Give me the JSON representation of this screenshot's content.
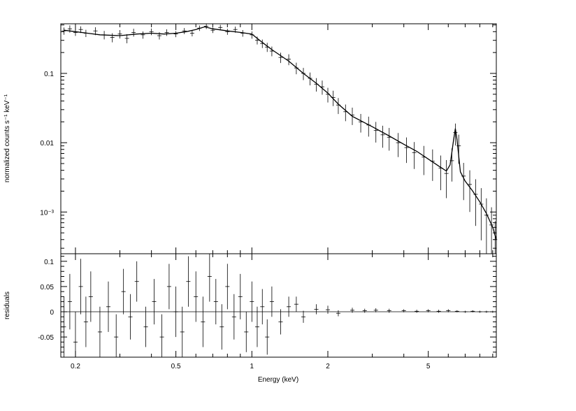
{
  "chart_data": {
    "type": "line",
    "top_panel": {
      "ylabel": "normalized counts s⁻¹ keV⁻¹",
      "yscale": "log",
      "xscale": "log",
      "xlim": [
        0.175,
        9.3
      ],
      "ylim": [
        0.00025,
        0.52
      ],
      "ytick_labels": [
        {
          "value": 0.1,
          "label": "0.1"
        },
        {
          "value": 0.01,
          "label": "0.01"
        },
        {
          "value": 0.001,
          "label": "10⁻³"
        }
      ],
      "model_curve": {
        "x": [
          0.18,
          0.2,
          0.25,
          0.3,
          0.35,
          0.4,
          0.45,
          0.5,
          0.55,
          0.6,
          0.65,
          0.7,
          0.8,
          0.9,
          1.0,
          1.1,
          1.2,
          1.4,
          1.6,
          1.8,
          2.0,
          2.2,
          2.5,
          3.0,
          3.5,
          4.0,
          4.5,
          5.0,
          5.5,
          5.9,
          6.1,
          6.3,
          6.4,
          6.5,
          6.7,
          7.0,
          7.5,
          8.0,
          8.5,
          9.0,
          9.3
        ],
        "y": [
          0.42,
          0.4,
          0.36,
          0.35,
          0.37,
          0.38,
          0.37,
          0.38,
          0.4,
          0.43,
          0.47,
          0.44,
          0.41,
          0.39,
          0.37,
          0.28,
          0.22,
          0.15,
          0.1,
          0.072,
          0.052,
          0.036,
          0.024,
          0.017,
          0.0125,
          0.0095,
          0.0075,
          0.0058,
          0.0046,
          0.0039,
          0.0048,
          0.011,
          0.016,
          0.011,
          0.0038,
          0.0028,
          0.002,
          0.0014,
          0.00095,
          0.0006,
          0.0004
        ]
      },
      "data_points": {
        "x": [
          0.18,
          0.19,
          0.2,
          0.21,
          0.22,
          0.24,
          0.26,
          0.28,
          0.3,
          0.32,
          0.34,
          0.37,
          0.4,
          0.43,
          0.46,
          0.5,
          0.54,
          0.58,
          0.62,
          0.66,
          0.7,
          0.75,
          0.8,
          0.86,
          0.92,
          1.0,
          1.05,
          1.1,
          1.15,
          1.2,
          1.3,
          1.4,
          1.5,
          1.6,
          1.7,
          1.8,
          1.9,
          2.0,
          2.1,
          2.2,
          2.35,
          2.5,
          2.7,
          2.9,
          3.1,
          3.3,
          3.5,
          3.8,
          4.1,
          4.4,
          4.8,
          5.2,
          5.6,
          5.9,
          6.2,
          6.4,
          6.6,
          6.9,
          7.3,
          7.7,
          8.1,
          8.5,
          8.9,
          9.2
        ],
        "y": [
          0.41,
          0.44,
          0.39,
          0.43,
          0.38,
          0.41,
          0.36,
          0.33,
          0.37,
          0.32,
          0.39,
          0.36,
          0.4,
          0.35,
          0.39,
          0.37,
          0.41,
          0.38,
          0.45,
          0.48,
          0.42,
          0.46,
          0.4,
          0.43,
          0.38,
          0.36,
          0.3,
          0.27,
          0.24,
          0.21,
          0.17,
          0.16,
          0.12,
          0.1,
          0.085,
          0.07,
          0.064,
          0.05,
          0.045,
          0.035,
          0.028,
          0.025,
          0.02,
          0.018,
          0.015,
          0.013,
          0.012,
          0.01,
          0.0085,
          0.0072,
          0.0062,
          0.0054,
          0.0043,
          0.0036,
          0.0055,
          0.014,
          0.009,
          0.0033,
          0.0025,
          0.0018,
          0.0013,
          0.0009,
          0.00065,
          0.0004
        ],
        "err_frac": [
          0.12,
          0.12,
          0.11,
          0.11,
          0.12,
          0.13,
          0.14,
          0.15,
          0.14,
          0.15,
          0.13,
          0.12,
          0.11,
          0.12,
          0.11,
          0.1,
          0.1,
          0.1,
          0.09,
          0.09,
          0.09,
          0.09,
          0.1,
          0.1,
          0.11,
          0.12,
          0.13,
          0.14,
          0.15,
          0.16,
          0.17,
          0.18,
          0.19,
          0.2,
          0.21,
          0.22,
          0.23,
          0.24,
          0.25,
          0.26,
          0.27,
          0.28,
          0.3,
          0.32,
          0.33,
          0.35,
          0.36,
          0.38,
          0.4,
          0.42,
          0.45,
          0.48,
          0.52,
          0.56,
          0.5,
          0.35,
          0.45,
          0.55,
          0.6,
          0.65,
          0.7,
          0.75,
          0.8,
          0.85
        ]
      }
    },
    "bottom_panel": {
      "ylabel": "residuals",
      "xlabel": "Energy (keV)",
      "xscale": "log",
      "ylim": [
        -0.09,
        0.115
      ],
      "ytick_labels": [
        {
          "value": 0.1,
          "label": "0.1"
        },
        {
          "value": 0.05,
          "label": "0.05"
        },
        {
          "value": 0,
          "label": "0"
        },
        {
          "value": -0.05,
          "label": "-0.05"
        }
      ],
      "zero_line": 0,
      "residuals": {
        "x": [
          0.18,
          0.19,
          0.2,
          0.21,
          0.22,
          0.23,
          0.25,
          0.27,
          0.29,
          0.31,
          0.33,
          0.35,
          0.38,
          0.41,
          0.44,
          0.47,
          0.5,
          0.53,
          0.56,
          0.6,
          0.64,
          0.68,
          0.72,
          0.76,
          0.8,
          0.85,
          0.9,
          0.95,
          1.0,
          1.05,
          1.1,
          1.15,
          1.2,
          1.3,
          1.4,
          1.5,
          1.6,
          1.8,
          2.0,
          2.2,
          2.5,
          2.8,
          3.1,
          3.5,
          4.0,
          4.5,
          5.0,
          5.5,
          6.0,
          6.5,
          7.0,
          7.5,
          8.0,
          8.5,
          9.0
        ],
        "y": [
          -0.03,
          0.02,
          -0.06,
          0.05,
          -0.02,
          0.03,
          -0.04,
          0.01,
          -0.05,
          0.04,
          -0.01,
          0.06,
          -0.03,
          0.02,
          -0.05,
          0.05,
          0.0,
          -0.04,
          0.06,
          0.03,
          -0.02,
          0.07,
          0.02,
          -0.03,
          0.05,
          -0.01,
          0.03,
          -0.04,
          0.02,
          -0.03,
          0.01,
          -0.05,
          0.02,
          -0.02,
          0.01,
          0.015,
          -0.01,
          0.005,
          0.004,
          -0.003,
          0.003,
          0.002,
          0.003,
          0.002,
          0.002,
          0.001,
          0.002,
          0.001,
          0.002,
          0.001,
          0.0,
          0.001,
          0.0,
          0.0,
          0.0
        ],
        "err": [
          0.06,
          0.055,
          0.06,
          0.055,
          0.05,
          0.05,
          0.05,
          0.05,
          0.045,
          0.045,
          0.045,
          0.04,
          0.04,
          0.045,
          0.045,
          0.045,
          0.05,
          0.05,
          0.05,
          0.05,
          0.05,
          0.05,
          0.045,
          0.045,
          0.045,
          0.045,
          0.045,
          0.04,
          0.04,
          0.04,
          0.035,
          0.035,
          0.03,
          0.025,
          0.02,
          0.015,
          0.012,
          0.01,
          0.008,
          0.006,
          0.005,
          0.004,
          0.004,
          0.004,
          0.003,
          0.003,
          0.003,
          0.003,
          0.003,
          0.002,
          0.002,
          0.002,
          0.002,
          0.002,
          0.002
        ]
      }
    },
    "xtick_labels": [
      {
        "value": 0.2,
        "label": "0.2"
      },
      {
        "value": 0.5,
        "label": "0.5"
      },
      {
        "value": 1,
        "label": "1"
      },
      {
        "value": 2,
        "label": "2"
      },
      {
        "value": 5,
        "label": "5"
      }
    ],
    "colors": {
      "axes": "#000000",
      "data": "#000000",
      "background": "#ffffff"
    }
  }
}
